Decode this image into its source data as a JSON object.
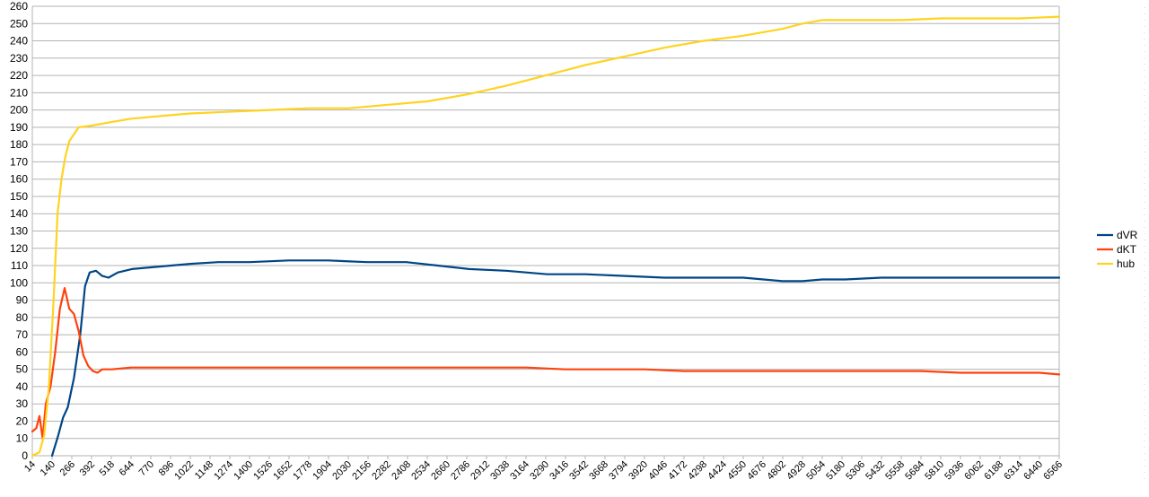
{
  "chart_data": {
    "type": "line",
    "title": "",
    "xlabel": "",
    "ylabel": "",
    "ylim": [
      0,
      260
    ],
    "yticks": [
      0,
      10,
      20,
      30,
      40,
      50,
      60,
      70,
      80,
      90,
      100,
      110,
      120,
      130,
      140,
      150,
      160,
      170,
      180,
      190,
      200,
      210,
      220,
      230,
      240,
      250,
      260
    ],
    "grid": true,
    "legend_position": "right",
    "x_tick_labels": [
      "14",
      "140",
      "266",
      "392",
      "518",
      "644",
      "770",
      "896",
      "1022",
      "1148",
      "1274",
      "1400",
      "1526",
      "1652",
      "1778",
      "1904",
      "2030",
      "2156",
      "2282",
      "2408",
      "2534",
      "2660",
      "2786",
      "2912",
      "3038",
      "3164",
      "3290",
      "3416",
      "3542",
      "3668",
      "3794",
      "3920",
      "4046",
      "4172",
      "4298",
      "4424",
      "4550",
      "4676",
      "4802",
      "4928",
      "5054",
      "5180",
      "5306",
      "5432",
      "5558",
      "5684",
      "5810",
      "5936",
      "6062",
      "6188",
      "6314",
      "6440",
      "6566"
    ],
    "xlim": [
      14,
      6566
    ],
    "series": [
      {
        "name": "dVR",
        "color": "#004586",
        "points": [
          [
            14,
            null
          ],
          [
            100,
            null
          ],
          [
            140,
            0
          ],
          [
            180,
            12
          ],
          [
            210,
            22
          ],
          [
            240,
            28
          ],
          [
            280,
            45
          ],
          [
            320,
            70
          ],
          [
            350,
            98
          ],
          [
            380,
            106
          ],
          [
            420,
            107
          ],
          [
            460,
            104
          ],
          [
            500,
            103
          ],
          [
            560,
            106
          ],
          [
            650,
            108
          ],
          [
            770,
            109
          ],
          [
            900,
            110
          ],
          [
            1022,
            111
          ],
          [
            1200,
            112
          ],
          [
            1400,
            112
          ],
          [
            1650,
            113
          ],
          [
            1900,
            113
          ],
          [
            2150,
            112
          ],
          [
            2400,
            112
          ],
          [
            2600,
            110
          ],
          [
            2800,
            108
          ],
          [
            3038,
            107
          ],
          [
            3300,
            105
          ],
          [
            3542,
            105
          ],
          [
            3800,
            104
          ],
          [
            4046,
            103
          ],
          [
            4300,
            103
          ],
          [
            4550,
            103
          ],
          [
            4800,
            101
          ],
          [
            4928,
            101
          ],
          [
            5054,
            102
          ],
          [
            5200,
            102
          ],
          [
            5432,
            103
          ],
          [
            5684,
            103
          ],
          [
            5936,
            103
          ],
          [
            6188,
            103
          ],
          [
            6440,
            103
          ],
          [
            6566,
            103
          ]
        ]
      },
      {
        "name": "dKT",
        "color": "#ff420e",
        "points": [
          [
            14,
            14
          ],
          [
            40,
            16
          ],
          [
            60,
            23
          ],
          [
            80,
            10
          ],
          [
            100,
            30
          ],
          [
            130,
            40
          ],
          [
            160,
            60
          ],
          [
            190,
            85
          ],
          [
            220,
            97
          ],
          [
            250,
            85
          ],
          [
            280,
            82
          ],
          [
            310,
            72
          ],
          [
            340,
            58
          ],
          [
            370,
            52
          ],
          [
            400,
            49
          ],
          [
            430,
            48
          ],
          [
            460,
            50
          ],
          [
            520,
            50
          ],
          [
            644,
            51
          ],
          [
            900,
            51
          ],
          [
            1148,
            51
          ],
          [
            1400,
            51
          ],
          [
            1652,
            51
          ],
          [
            1904,
            51
          ],
          [
            2156,
            51
          ],
          [
            2408,
            51
          ],
          [
            2660,
            51
          ],
          [
            2912,
            51
          ],
          [
            3164,
            51
          ],
          [
            3416,
            50
          ],
          [
            3668,
            50
          ],
          [
            3920,
            50
          ],
          [
            4172,
            49
          ],
          [
            4424,
            49
          ],
          [
            4676,
            49
          ],
          [
            4928,
            49
          ],
          [
            5180,
            49
          ],
          [
            5432,
            49
          ],
          [
            5684,
            49
          ],
          [
            5936,
            48
          ],
          [
            6188,
            48
          ],
          [
            6440,
            48
          ],
          [
            6566,
            47
          ]
        ]
      },
      {
        "name": "hub",
        "color": "#ffd320",
        "points": [
          [
            14,
            0
          ],
          [
            60,
            2
          ],
          [
            90,
            12
          ],
          [
            120,
            40
          ],
          [
            150,
            90
          ],
          [
            175,
            140
          ],
          [
            200,
            160
          ],
          [
            225,
            173
          ],
          [
            250,
            182
          ],
          [
            280,
            186
          ],
          [
            310,
            190
          ],
          [
            392,
            191
          ],
          [
            518,
            193
          ],
          [
            644,
            195
          ],
          [
            770,
            196
          ],
          [
            896,
            197
          ],
          [
            1022,
            198
          ],
          [
            1274,
            199
          ],
          [
            1526,
            200
          ],
          [
            1778,
            201
          ],
          [
            2030,
            201
          ],
          [
            2282,
            203
          ],
          [
            2534,
            205
          ],
          [
            2786,
            209
          ],
          [
            3038,
            214
          ],
          [
            3290,
            220
          ],
          [
            3542,
            226
          ],
          [
            3794,
            231
          ],
          [
            4046,
            236
          ],
          [
            4298,
            240
          ],
          [
            4550,
            243
          ],
          [
            4676,
            245
          ],
          [
            4802,
            247
          ],
          [
            4928,
            250
          ],
          [
            5054,
            252
          ],
          [
            5306,
            252
          ],
          [
            5558,
            252
          ],
          [
            5810,
            253
          ],
          [
            6062,
            253
          ],
          [
            6314,
            253
          ],
          [
            6566,
            254
          ]
        ]
      }
    ]
  }
}
